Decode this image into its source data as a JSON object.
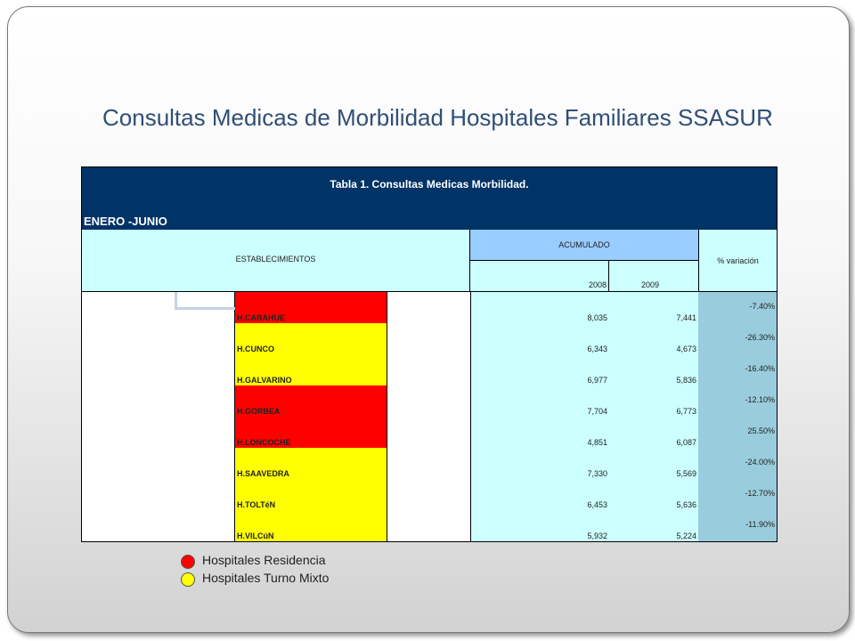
{
  "title": "Consultas Medicas de Morbilidad Hospitales Familiares SSASUR",
  "table": {
    "subtitle": "Tabla 1. Consultas Medicas Morbilidad.",
    "range": "ENERO -JUNIO",
    "headers": {
      "establecimientos": "ESTABLECIMIENTOS",
      "acumulado": "ACUMULADO",
      "year1": "2008",
      "year2": "2009",
      "variacion": "% variación"
    },
    "rows": [
      {
        "name": "H.CARAHUE",
        "v2008": "8,035",
        "v2009": "7,441",
        "pct": "-7.40%",
        "color": "#ff0000"
      },
      {
        "name": "H.CUNCO",
        "v2008": "6,343",
        "v2009": "4,673",
        "pct": "-26.30%",
        "color": "#ffff00"
      },
      {
        "name": "H.GALVARINO",
        "v2008": "6,977",
        "v2009": "5,836",
        "pct": "-16.40%",
        "color": "#ffff00"
      },
      {
        "name": "H.GORBEA",
        "v2008": "7,704",
        "v2009": "6,773",
        "pct": "-12.10%",
        "color": "#ff0000"
      },
      {
        "name": "H.LONCOCHE",
        "v2008": "4,851",
        "v2009": "6,087",
        "pct": "25.50%",
        "color": "#ff0000"
      },
      {
        "name": "H.SAAVEDRA",
        "v2008": "7,330",
        "v2009": "5,569",
        "pct": "-24.00%",
        "color": "#ffff00"
      },
      {
        "name": "H.TOLTéN",
        "v2008": "6,453",
        "v2009": "5,636",
        "pct": "-12.70%",
        "color": "#ffff00"
      },
      {
        "name": "H.VILCúN",
        "v2008": "5,932",
        "v2009": "5,224",
        "pct": "-11.90%",
        "color": "#ffff00"
      }
    ]
  },
  "legend": [
    {
      "label": "Hospitales Residencia",
      "color": "#ff0000"
    },
    {
      "label": "Hospitales Turno Mixto",
      "color": "#ffff00"
    }
  ]
}
